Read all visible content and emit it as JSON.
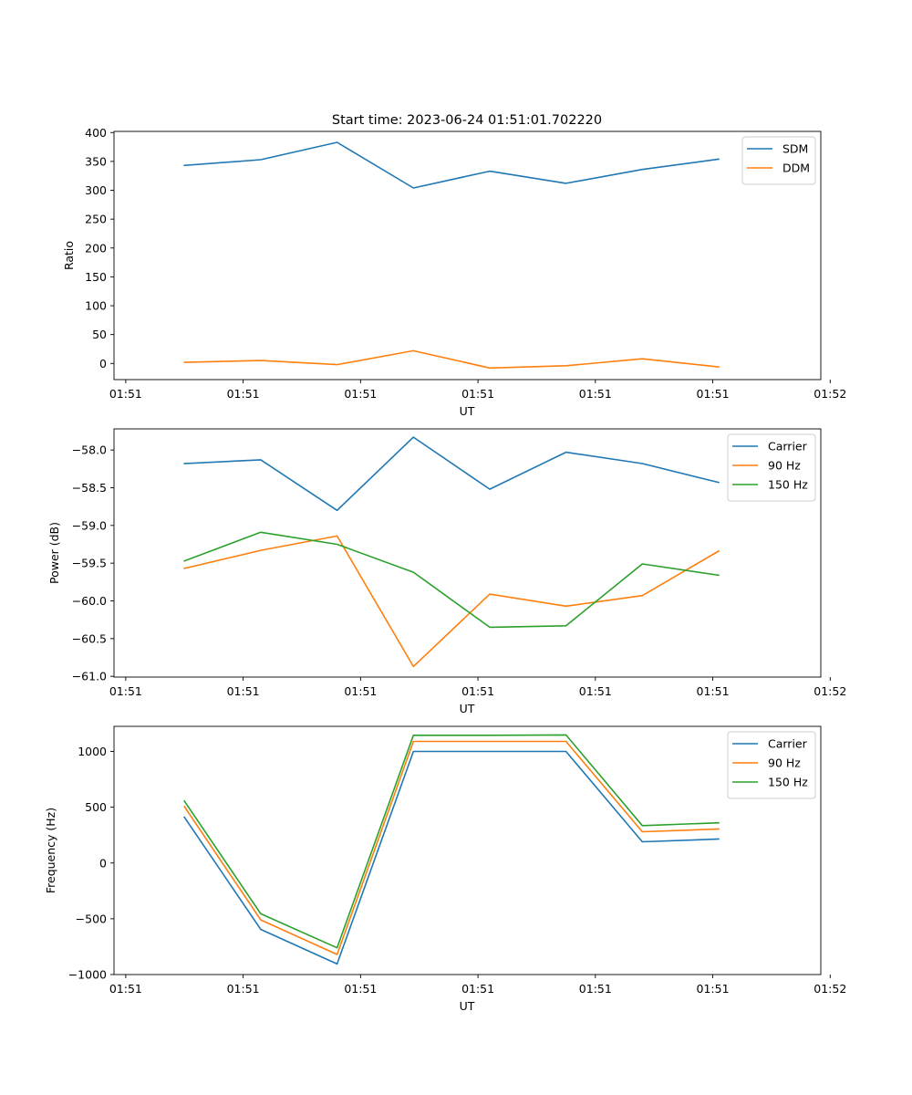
{
  "title": "Start time: 2023-06-24 01:51:01.702220",
  "colors": {
    "blue": "#1f77b4",
    "orange": "#ff7f0e",
    "green": "#2ca02c"
  },
  "chart_data": [
    {
      "type": "line",
      "xlabel": "UT",
      "ylabel": "Ratio",
      "x_tick_labels": [
        "01:51",
        "01:51",
        "01:51",
        "01:51",
        "01:51",
        "01:51",
        "01:52"
      ],
      "x": [
        0.5,
        1.15,
        1.8,
        2.45,
        3.1,
        3.75,
        4.4,
        5.05
      ],
      "xlim": [
        -0.1,
        5.92
      ],
      "ylim": [
        -28,
        402
      ],
      "yticks": [
        0,
        50,
        100,
        150,
        200,
        250,
        300,
        350,
        400
      ],
      "grid": false,
      "legend": "top-right",
      "series": [
        {
          "name": "SDM",
          "color": "#1f77b4",
          "values": [
            343,
            353,
            383,
            304,
            333,
            312,
            336,
            354
          ]
        },
        {
          "name": "DDM",
          "color": "#ff7f0e",
          "values": [
            2,
            5,
            -2,
            22,
            -8,
            -4,
            8,
            -6
          ]
        }
      ]
    },
    {
      "type": "line",
      "xlabel": "UT",
      "ylabel": "Power (dB)",
      "x_tick_labels": [
        "01:51",
        "01:51",
        "01:51",
        "01:51",
        "01:51",
        "01:51",
        "01:52"
      ],
      "x": [
        0.5,
        1.15,
        1.8,
        2.45,
        3.1,
        3.75,
        4.4,
        5.05
      ],
      "xlim": [
        -0.1,
        5.92
      ],
      "ylim": [
        -61.01,
        -57.72
      ],
      "yticks": [
        -58.0,
        -58.5,
        -59.0,
        -59.5,
        -60.0,
        -60.5,
        -61.0
      ],
      "ytick_labels": [
        "−58.0",
        "−58.5",
        "−59.0",
        "−59.5",
        "−60.0",
        "−60.5",
        "−61.0"
      ],
      "grid": false,
      "legend": "top-right",
      "series": [
        {
          "name": "Carrier",
          "color": "#1f77b4",
          "values": [
            -58.18,
            -58.13,
            -58.8,
            -57.83,
            -58.52,
            -58.03,
            -58.18,
            -58.43
          ]
        },
        {
          "name": "90 Hz",
          "color": "#ff7f0e",
          "values": [
            -59.57,
            -59.33,
            -59.14,
            -60.87,
            -59.91,
            -60.07,
            -59.93,
            -59.34
          ]
        },
        {
          "name": "150 Hz",
          "color": "#2ca02c",
          "values": [
            -59.47,
            -59.09,
            -59.25,
            -59.62,
            -60.35,
            -60.33,
            -59.51,
            -59.66
          ]
        }
      ]
    },
    {
      "type": "line",
      "xlabel": "UT",
      "ylabel": "Frequency (Hz)",
      "x_tick_labels": [
        "01:51",
        "01:51",
        "01:51",
        "01:51",
        "01:51",
        "01:51",
        "01:52"
      ],
      "x": [
        0.5,
        1.15,
        1.8,
        2.45,
        3.1,
        3.75,
        4.4,
        5.05
      ],
      "xlim": [
        -0.1,
        5.92
      ],
      "ylim": [
        -1000,
        1225
      ],
      "yticks": [
        1000,
        500,
        0,
        -500,
        -1000
      ],
      "ytick_labels": [
        "1000",
        "500",
        "0",
        "−500",
        "−1000"
      ],
      "grid": false,
      "legend": "top-right",
      "series": [
        {
          "name": "Carrier",
          "color": "#1f77b4",
          "values": [
            410,
            -595,
            -905,
            1000,
            1000,
            1000,
            190,
            215
          ]
        },
        {
          "name": "90 Hz",
          "color": "#ff7f0e",
          "values": [
            505,
            -510,
            -820,
            1090,
            1090,
            1090,
            280,
            305
          ]
        },
        {
          "name": "150 Hz",
          "color": "#2ca02c",
          "values": [
            555,
            -455,
            -760,
            1145,
            1145,
            1148,
            335,
            360
          ]
        }
      ]
    }
  ]
}
